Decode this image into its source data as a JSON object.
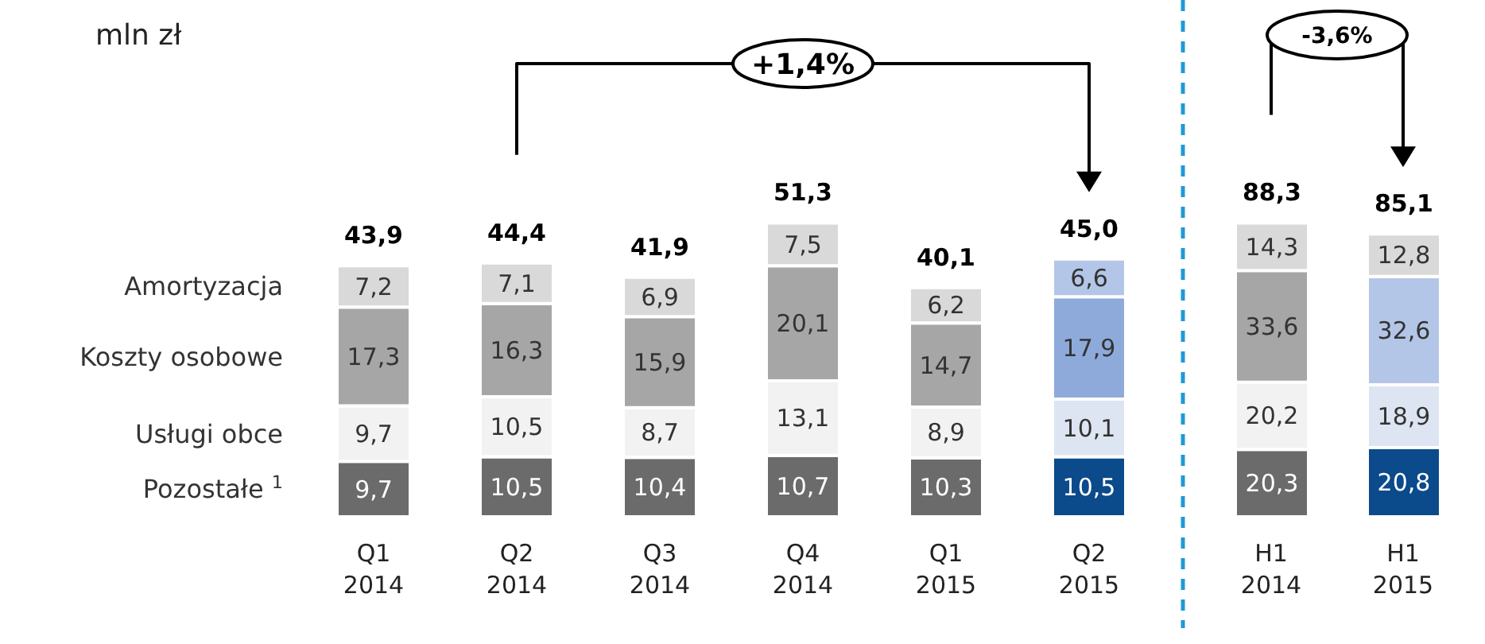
{
  "chart_data": [
    {
      "type": "bar",
      "stacked": true,
      "ylabel": "mln zł",
      "categories": [
        "Q1 2014",
        "Q2 2014",
        "Q3 2014",
        "Q4 2014",
        "Q1 2015",
        "Q2 2015"
      ],
      "series": [
        {
          "name": "Pozostałe $^{1}$",
          "colors": [
            "#6b6b6b",
            "#6b6b6b",
            "#6b6b6b",
            "#6b6b6b",
            "#6b6b6b",
            "#0b4a8b"
          ],
          "values": [
            9.7,
            10.5,
            10.4,
            10.7,
            10.3,
            10.5
          ],
          "value_labels": [
            "9,7",
            "10,5",
            "10,4",
            "10,7",
            "10,3",
            "10,5"
          ]
        },
        {
          "name": "Usługi obce",
          "colors": [
            "#f2f2f2",
            "#f2f2f2",
            "#f2f2f2",
            "#f2f2f2",
            "#f2f2f2",
            "#dde5f3"
          ],
          "values": [
            9.7,
            10.5,
            8.7,
            13.1,
            8.9,
            10.1
          ],
          "value_labels": [
            "9,7",
            "10,5",
            "8,7",
            "13,1",
            "8,9",
            "10,1"
          ]
        },
        {
          "name": "Koszty osobowe",
          "colors": [
            "#a6a6a6",
            "#a6a6a6",
            "#a6a6a6",
            "#a6a6a6",
            "#a6a6a6",
            "#8eaadb"
          ],
          "values": [
            17.3,
            16.3,
            15.9,
            20.1,
            14.7,
            17.9
          ],
          "value_labels": [
            "17,3",
            "16,3",
            "15,9",
            "20,1",
            "14,7",
            "17,9"
          ]
        },
        {
          "name": "Amortyzacja",
          "colors": [
            "#d9d9d9",
            "#d9d9d9",
            "#d9d9d9",
            "#d9d9d9",
            "#d9d9d9",
            "#b4c6e7"
          ],
          "values": [
            7.2,
            7.1,
            6.9,
            7.5,
            6.2,
            6.6
          ],
          "value_labels": [
            "7,2",
            "7,1",
            "6,9",
            "7,5",
            "6,2",
            "6,6"
          ]
        }
      ],
      "totals": [
        "43,9",
        "44,4",
        "41,9",
        "51,3",
        "40,1",
        "45,0"
      ],
      "annotations": [
        "+1,4%"
      ]
    },
    {
      "type": "bar",
      "stacked": true,
      "categories": [
        "H1 2014",
        "H1 2015"
      ],
      "series": [
        {
          "colors": [
            "#6b6b6b",
            "#0b4a8b"
          ],
          "values": [
            20.3,
            20.8
          ],
          "value_labels": [
            "20,3",
            "20,8"
          ]
        },
        {
          "colors": [
            "#f2f2f2",
            "#dde5f3"
          ],
          "values": [
            20.2,
            18.9
          ],
          "value_labels": [
            "20,2",
            "18,9"
          ]
        },
        {
          "colors": [
            "#a6a6a6",
            "#b4c6e7"
          ],
          "values": [
            33.6,
            32.6
          ],
          "value_labels": [
            "33,6",
            "32,6"
          ]
        },
        {
          "colors": [
            "#d9d9d9",
            "#d9d9d9"
          ],
          "values": [
            14.3,
            12.8
          ],
          "value_labels": [
            "14,3",
            "12,8"
          ]
        }
      ],
      "totals": [
        "88,3",
        "85,1"
      ],
      "annotations": [
        "-3,6%"
      ]
    }
  ]
}
